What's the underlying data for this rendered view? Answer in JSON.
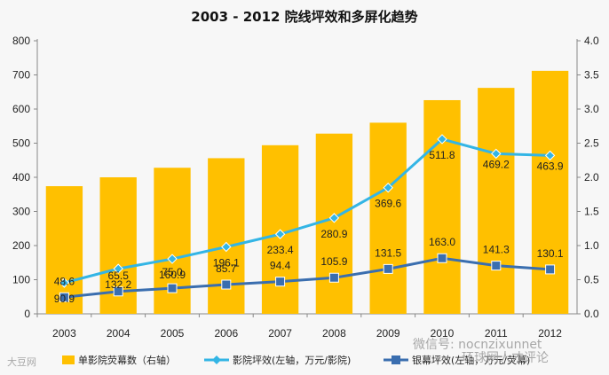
{
  "chart_data": {
    "type": "bar",
    "title": "2003 - 2012 院线坪效和多屏化趋势",
    "categories": [
      "2003",
      "2004",
      "2005",
      "2006",
      "2007",
      "2008",
      "2009",
      "2010",
      "2011",
      "2012"
    ],
    "y_left": {
      "range": [
        0,
        800
      ],
      "ticks": [
        "0",
        "100",
        "200",
        "300",
        "400",
        "500",
        "600",
        "700",
        "800"
      ]
    },
    "y_right": {
      "range": [
        0,
        4.0
      ],
      "ticks": [
        "0.0",
        "0.5",
        "1.0",
        "1.5",
        "2.0",
        "2.5",
        "3.0",
        "3.5",
        "4.0"
      ]
    },
    "series": [
      {
        "name": "单影院荧幕数（右轴）",
        "kind": "bar",
        "axis": "right",
        "color": "#FFC000",
        "values": [
          1.87,
          2.0,
          2.14,
          2.28,
          2.47,
          2.64,
          2.8,
          3.13,
          3.31,
          3.56
        ]
      },
      {
        "name": "影院坪效(左轴，万元/影院)",
        "kind": "line",
        "axis": "left",
        "color": "#33B5E5",
        "marker": "diamond",
        "values": [
          90.9,
          132.2,
          160.9,
          196.1,
          233.4,
          280.9,
          369.6,
          511.8,
          469.2,
          463.9
        ],
        "labels": [
          "90.9",
          "132.2",
          "160.9",
          "196.1",
          "233.4",
          "280.9",
          "369.6",
          "511.8",
          "469.2",
          "463.9"
        ]
      },
      {
        "name": "银幕坪效(左轴，万元/荧幕)",
        "kind": "line",
        "axis": "left",
        "color": "#3A6EAF",
        "marker": "square",
        "values": [
          48.6,
          65.5,
          75.0,
          85.7,
          94.4,
          105.9,
          131.5,
          163.0,
          141.3,
          130.1
        ],
        "labels": [
          "48.6",
          "65.5",
          "75.0",
          "85.7",
          "94.4",
          "105.9",
          "131.5",
          "163.0",
          "141.3",
          "130.1"
        ]
      }
    ],
    "legend_position": "bottom",
    "grid": false
  },
  "watermark": {
    "left_logo_text": "大豆网",
    "wechat_text": "微信号: nocnzixunnet",
    "brand_text": "环球网人才评论"
  }
}
